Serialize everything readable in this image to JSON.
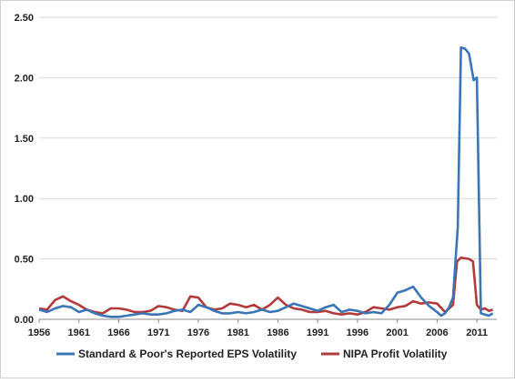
{
  "chart_data": {
    "type": "line",
    "ylim": [
      0,
      2.5
    ],
    "xlim": [
      1956,
      2013.5
    ],
    "yticks": [
      "0.00",
      "0.50",
      "1.00",
      "1.50",
      "2.00",
      "2.50"
    ],
    "xticks": [
      "1956",
      "1961",
      "1966",
      "1971",
      "1976",
      "1981",
      "1986",
      "1991",
      "1996",
      "2001",
      "2006",
      "2011"
    ],
    "grid": "horizontal",
    "legend_position": "bottom",
    "series": [
      {
        "name": "Standard & Poor's Reported EPS Volatility",
        "color": "#3a75b8",
        "points": [
          [
            1956,
            0.08
          ],
          [
            1957,
            0.06
          ],
          [
            1958,
            0.09
          ],
          [
            1959,
            0.11
          ],
          [
            1960,
            0.1
          ],
          [
            1961,
            0.06
          ],
          [
            1962,
            0.08
          ],
          [
            1963,
            0.05
          ],
          [
            1964,
            0.03
          ],
          [
            1965,
            0.02
          ],
          [
            1966,
            0.02
          ],
          [
            1967,
            0.03
          ],
          [
            1968,
            0.04
          ],
          [
            1969,
            0.05
          ],
          [
            1970,
            0.04
          ],
          [
            1971,
            0.04
          ],
          [
            1972,
            0.05
          ],
          [
            1973,
            0.07
          ],
          [
            1974,
            0.08
          ],
          [
            1975,
            0.06
          ],
          [
            1976,
            0.12
          ],
          [
            1977,
            0.1
          ],
          [
            1978,
            0.07
          ],
          [
            1979,
            0.05
          ],
          [
            1980,
            0.05
          ],
          [
            1981,
            0.06
          ],
          [
            1982,
            0.05
          ],
          [
            1983,
            0.06
          ],
          [
            1984,
            0.08
          ],
          [
            1985,
            0.06
          ],
          [
            1986,
            0.07
          ],
          [
            1987,
            0.1
          ],
          [
            1988,
            0.13
          ],
          [
            1989,
            0.11
          ],
          [
            1990,
            0.09
          ],
          [
            1991,
            0.07
          ],
          [
            1992,
            0.1
          ],
          [
            1993,
            0.12
          ],
          [
            1994,
            0.06
          ],
          [
            1995,
            0.08
          ],
          [
            1996,
            0.07
          ],
          [
            1997,
            0.05
          ],
          [
            1998,
            0.06
          ],
          [
            1999,
            0.05
          ],
          [
            2000,
            0.12
          ],
          [
            2001,
            0.22
          ],
          [
            2002,
            0.24
          ],
          [
            2003,
            0.27
          ],
          [
            2004,
            0.18
          ],
          [
            2005,
            0.11
          ],
          [
            2006,
            0.06
          ],
          [
            2006.5,
            0.03
          ],
          [
            2007,
            0.05
          ],
          [
            2007.5,
            0.1
          ],
          [
            2008,
            0.18
          ],
          [
            2008.6,
            0.76
          ],
          [
            2009,
            2.25
          ],
          [
            2009.5,
            2.24
          ],
          [
            2010,
            2.2
          ],
          [
            2010.6,
            1.98
          ],
          [
            2011,
            2.0
          ],
          [
            2011.5,
            0.05
          ],
          [
            2012,
            0.04
          ],
          [
            2012.5,
            0.03
          ],
          [
            2013,
            0.05
          ]
        ]
      },
      {
        "name": "NIPA Profit Volatility",
        "color": "#b23a3a",
        "points": [
          [
            1956,
            0.09
          ],
          [
            1957,
            0.08
          ],
          [
            1958,
            0.16
          ],
          [
            1959,
            0.19
          ],
          [
            1960,
            0.15
          ],
          [
            1961,
            0.12
          ],
          [
            1962,
            0.08
          ],
          [
            1963,
            0.06
          ],
          [
            1964,
            0.05
          ],
          [
            1965,
            0.09
          ],
          [
            1966,
            0.09
          ],
          [
            1967,
            0.08
          ],
          [
            1968,
            0.06
          ],
          [
            1969,
            0.06
          ],
          [
            1970,
            0.07
          ],
          [
            1971,
            0.11
          ],
          [
            1972,
            0.1
          ],
          [
            1973,
            0.08
          ],
          [
            1974,
            0.07
          ],
          [
            1975,
            0.19
          ],
          [
            1976,
            0.18
          ],
          [
            1977,
            0.1
          ],
          [
            1978,
            0.08
          ],
          [
            1979,
            0.09
          ],
          [
            1980,
            0.13
          ],
          [
            1981,
            0.12
          ],
          [
            1982,
            0.1
          ],
          [
            1983,
            0.12
          ],
          [
            1984,
            0.08
          ],
          [
            1985,
            0.12
          ],
          [
            1986,
            0.18
          ],
          [
            1987,
            0.12
          ],
          [
            1988,
            0.09
          ],
          [
            1989,
            0.08
          ],
          [
            1990,
            0.06
          ],
          [
            1991,
            0.06
          ],
          [
            1992,
            0.07
          ],
          [
            1993,
            0.05
          ],
          [
            1994,
            0.04
          ],
          [
            1995,
            0.05
          ],
          [
            1996,
            0.04
          ],
          [
            1997,
            0.06
          ],
          [
            1998,
            0.1
          ],
          [
            1999,
            0.09
          ],
          [
            2000,
            0.08
          ],
          [
            2001,
            0.1
          ],
          [
            2002,
            0.11
          ],
          [
            2003,
            0.15
          ],
          [
            2004,
            0.13
          ],
          [
            2005,
            0.14
          ],
          [
            2006,
            0.13
          ],
          [
            2007,
            0.06
          ],
          [
            2008,
            0.12
          ],
          [
            2008.5,
            0.48
          ],
          [
            2009,
            0.51
          ],
          [
            2010,
            0.5
          ],
          [
            2010.5,
            0.48
          ],
          [
            2011,
            0.12
          ],
          [
            2011.5,
            0.08
          ],
          [
            2012,
            0.09
          ],
          [
            2012.5,
            0.07
          ],
          [
            2013,
            0.08
          ]
        ]
      }
    ]
  }
}
